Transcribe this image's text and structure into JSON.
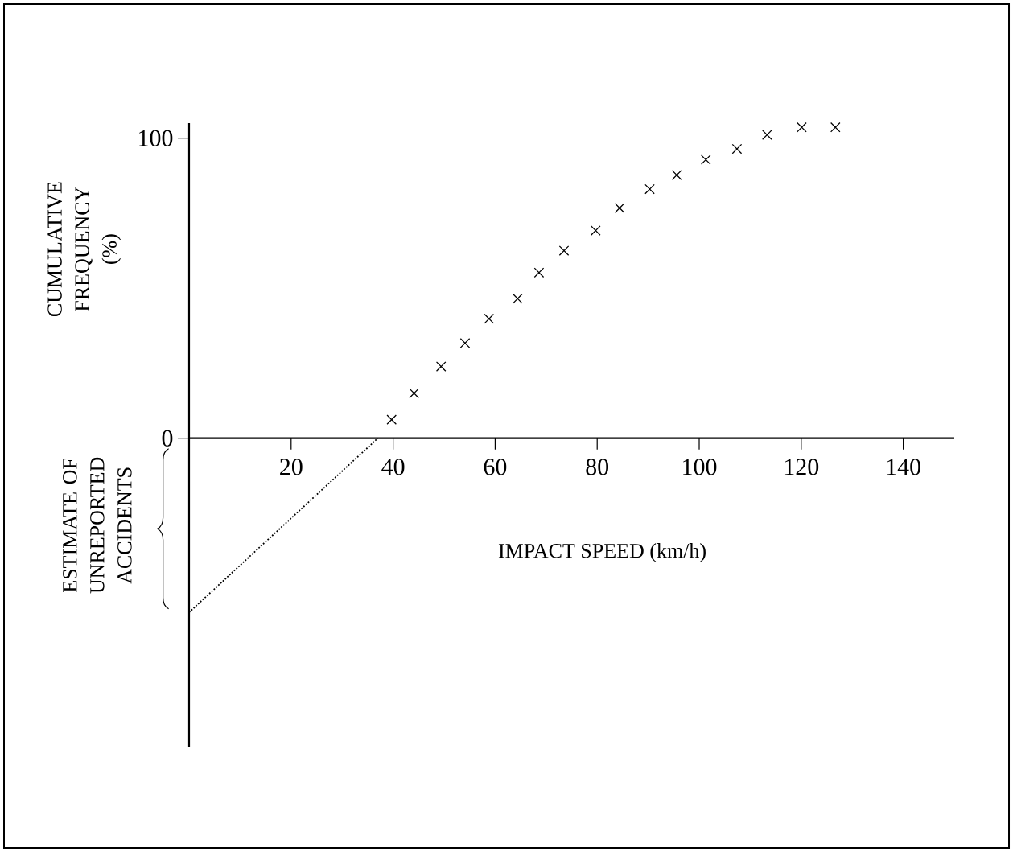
{
  "chart_data": {
    "type": "scatter",
    "xlabel": "IMPACT SPEED (km/h)",
    "ylabel": "CUMULATIVE FREQUENCY (%)",
    "annotations": [
      "ESTIMATE OF UNREPORTED ACCIDENTS"
    ],
    "xlim": [
      0,
      150
    ],
    "ylim": [
      -103,
      105
    ],
    "xticks": [
      20,
      40,
      60,
      80,
      100,
      120,
      140
    ],
    "yticks": [
      0,
      100
    ],
    "grid": false,
    "series": [
      {
        "marker": "cross",
        "color": "#000000",
        "x": [
          39.7,
          44.1,
          49.4,
          54.1,
          58.8,
          64.4,
          68.6,
          73.5,
          79.7,
          84.4,
          90.3,
          95.6,
          101.3,
          107.4,
          113.3,
          120.1,
          126.7
        ],
        "values": [
          6.2,
          15.0,
          23.9,
          31.7,
          39.8,
          46.5,
          55.2,
          62.5,
          69.2,
          76.7,
          83.0,
          87.7,
          92.8,
          96.4,
          101.1,
          103.6,
          103.6
        ]
      },
      {
        "type": "line",
        "marker": "none",
        "line_style": "dotted",
        "color": "#000000",
        "x": [
          0,
          37
        ],
        "values": [
          -58,
          0
        ]
      }
    ]
  }
}
